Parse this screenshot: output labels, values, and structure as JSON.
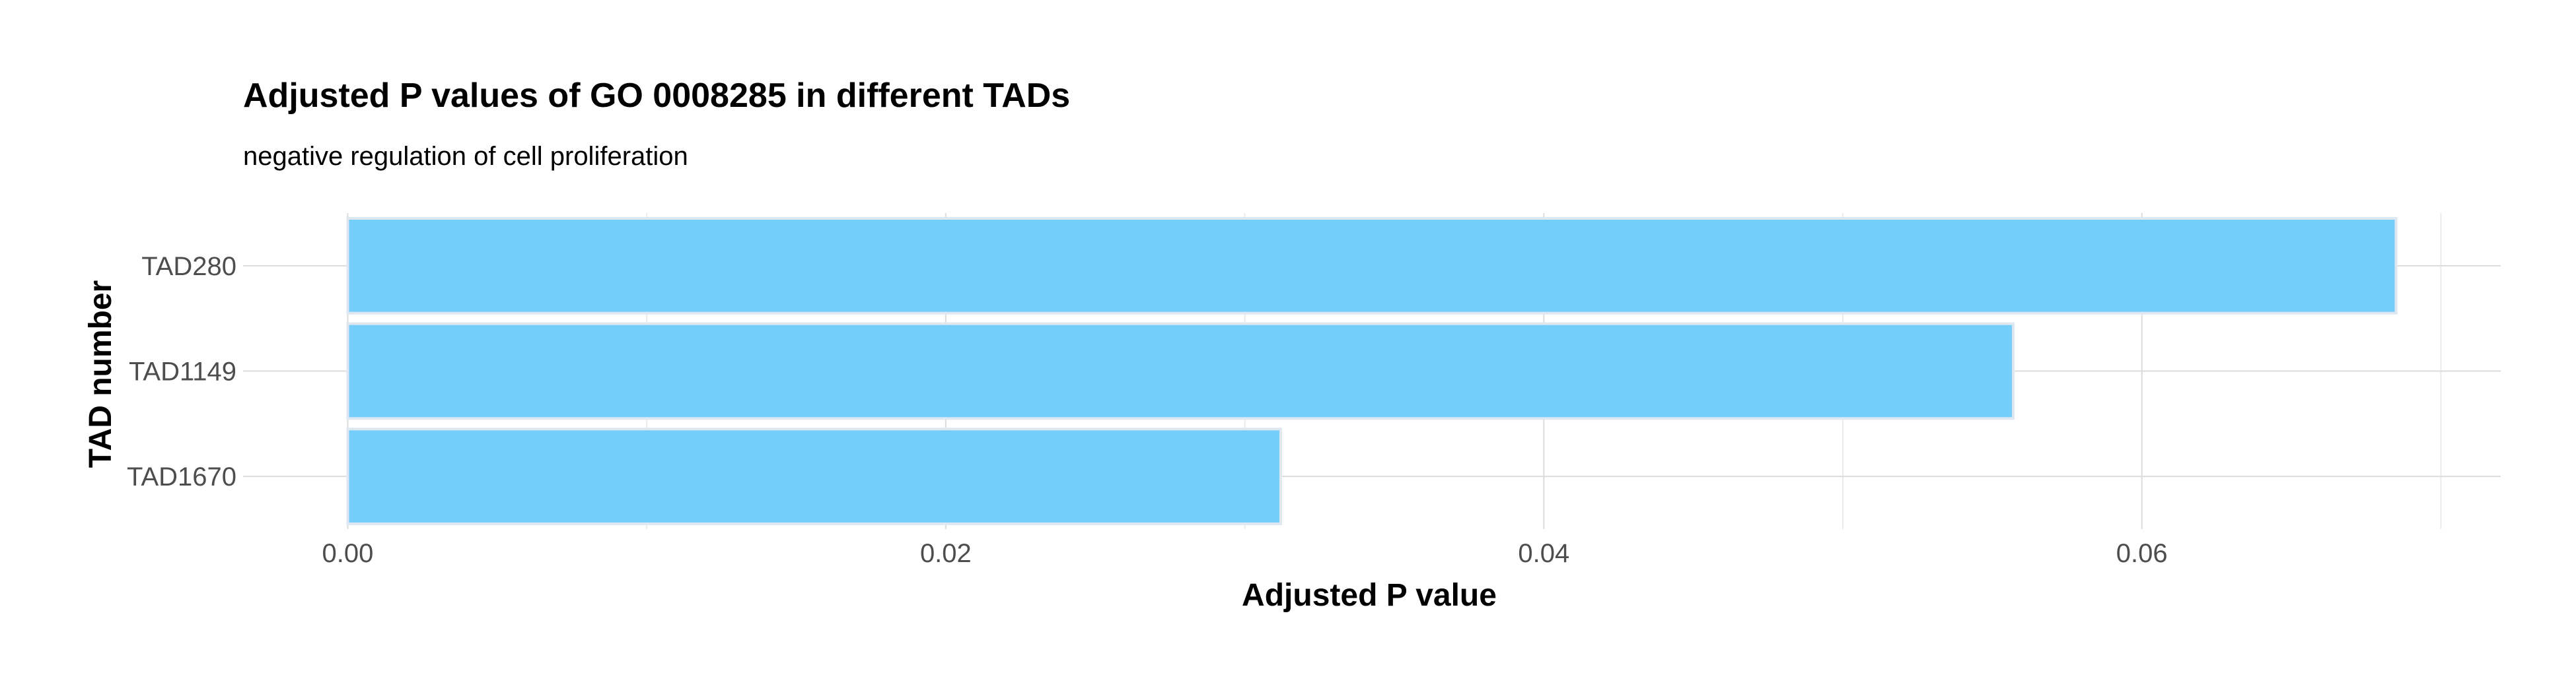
{
  "chart_data": {
    "type": "bar",
    "orientation": "horizontal",
    "title": "Adjusted P values of GO 0008285 in different TADs",
    "subtitle": "negative regulation of cell proliferation",
    "xlabel": "Adjusted P value",
    "ylabel": "TAD number",
    "categories": [
      "TAD280",
      "TAD1149",
      "TAD1670"
    ],
    "values": [
      0.0685,
      0.0557,
      0.0312
    ],
    "xlim": [
      -0.0035,
      0.072
    ],
    "xticks": [
      0.0,
      0.02,
      0.04,
      0.06
    ],
    "xtick_labels": [
      "0.00",
      "0.02",
      "0.04",
      "0.06"
    ],
    "grid": true,
    "colors": {
      "bar_fill": "#74cef9",
      "bar_outline": "#dfe8f0",
      "grid_major": "#dcdcdc",
      "grid_minor": "#ebebeb",
      "text": "#000000",
      "tick_text": "#4d4d4d"
    }
  }
}
